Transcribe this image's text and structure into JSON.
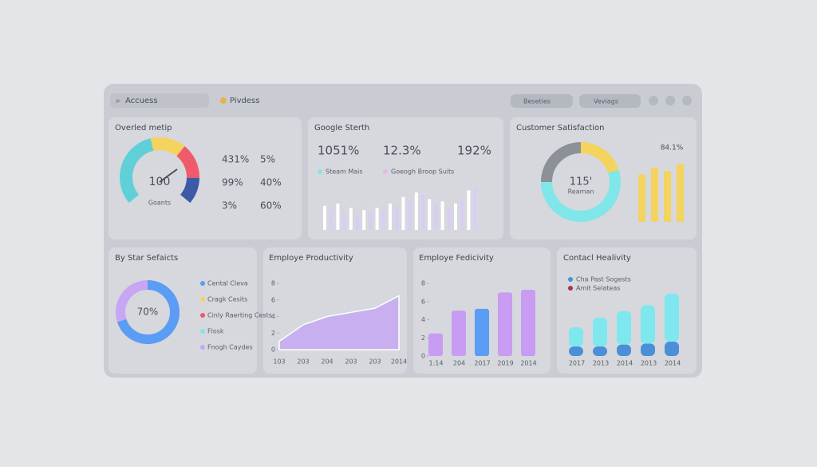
{
  "header": {
    "search": "Accuess",
    "brand": "Pivdess",
    "filter1": "Beseties",
    "filter2": "Veviags"
  },
  "overall": {
    "type": "gauge",
    "title": "Overled metip",
    "value": "100",
    "label": "Goants",
    "segments": [
      {
        "color": "#5fd0d8",
        "value": 45
      },
      {
        "color": "#f4d35e",
        "value": 20
      },
      {
        "color": "#ef5b6b",
        "value": 20
      },
      {
        "color": "#3c5aa6",
        "value": 15
      }
    ],
    "stats": [
      "431%",
      "5%",
      "99%",
      "40%",
      "3%",
      "60%"
    ]
  },
  "google": {
    "type": "bar",
    "title": "Google Sterth",
    "stats": [
      "1051%",
      "12.3%",
      "192%"
    ],
    "ylim": [
      0,
      100
    ],
    "series": [
      {
        "name": "Steam Mais",
        "color": "#ffffff",
        "values": [
          55,
          60,
          50,
          45,
          50,
          60,
          75,
          85,
          70,
          65,
          60,
          90
        ]
      },
      {
        "name": "Goeogh Broop Suits",
        "color": "#d8cdf5",
        "values": [
          45,
          40,
          35,
          40,
          45,
          55,
          65,
          80,
          60,
          50,
          70,
          95
        ]
      }
    ]
  },
  "satisfaction": {
    "type": "donut",
    "title": "Customer Satisfaction",
    "value": "115'",
    "label": "Reaman",
    "stat": "84.1%",
    "segments": [
      {
        "color": "#8c9099",
        "value": 25
      },
      {
        "color": "#f4d35e",
        "value": 20
      },
      {
        "color": "#7fe6ea",
        "value": 55
      }
    ],
    "bars": {
      "color": "#f4d35e",
      "values": [
        70,
        80,
        75,
        85
      ],
      "ylim": [
        0,
        100
      ]
    }
  },
  "services": {
    "type": "donut",
    "title": "By Star Sefaicts",
    "value": "70%",
    "segments": [
      {
        "color": "#5b9cf5",
        "value": 70
      },
      {
        "color": "#c7a6f5",
        "value": 30
      }
    ],
    "legend": [
      {
        "name": "Cental Cleva",
        "color": "#5b9cf5"
      },
      {
        "name": "Cragk Cesits",
        "color": "#f4d35e"
      },
      {
        "name": "Cinly Raerting Cests",
        "color": "#ef5b6b"
      },
      {
        "name": "Flosk",
        "color": "#7fe6ea"
      },
      {
        "name": "Fnogh Caydes",
        "color": "#c7a6f5"
      }
    ]
  },
  "productivity": {
    "type": "area",
    "title": "Employe Productivity",
    "color": "#c6a8f2",
    "categories": [
      "103",
      "203",
      "204",
      "203",
      "203",
      "2014"
    ],
    "values": [
      1,
      3,
      4,
      4.5,
      5,
      6.5
    ],
    "ylim": [
      0,
      8
    ],
    "yticks": [
      0,
      2,
      4,
      6,
      8
    ]
  },
  "fedicivity": {
    "type": "bar",
    "title": "Employe Fedicivity",
    "categories": [
      "1:14",
      "204",
      "2017",
      "2019",
      "2014"
    ],
    "values": [
      2.5,
      5,
      5.2,
      7,
      7.3
    ],
    "colors": [
      "#c79cf2",
      "#c79cf2",
      "#5b9cf5",
      "#c79cf2",
      "#c79cf2"
    ],
    "ylim": [
      0,
      8
    ],
    "yticks": [
      0,
      2,
      4,
      6,
      8
    ]
  },
  "healivity": {
    "type": "stacked-bar",
    "title": "Contacl Healivity",
    "categories": [
      "2017",
      "2013",
      "2014",
      "2013",
      "2014"
    ],
    "ylim": [
      0,
      8
    ],
    "series": [
      {
        "name": "Cha Past Sogests",
        "color": "#4a90d9",
        "values": [
          1,
          1,
          1.2,
          1.3,
          1.5
        ]
      },
      {
        "name": "Amit Selateas",
        "color": "#7ee8ee",
        "values": [
          2,
          3,
          3.5,
          4,
          5
        ]
      }
    ]
  }
}
